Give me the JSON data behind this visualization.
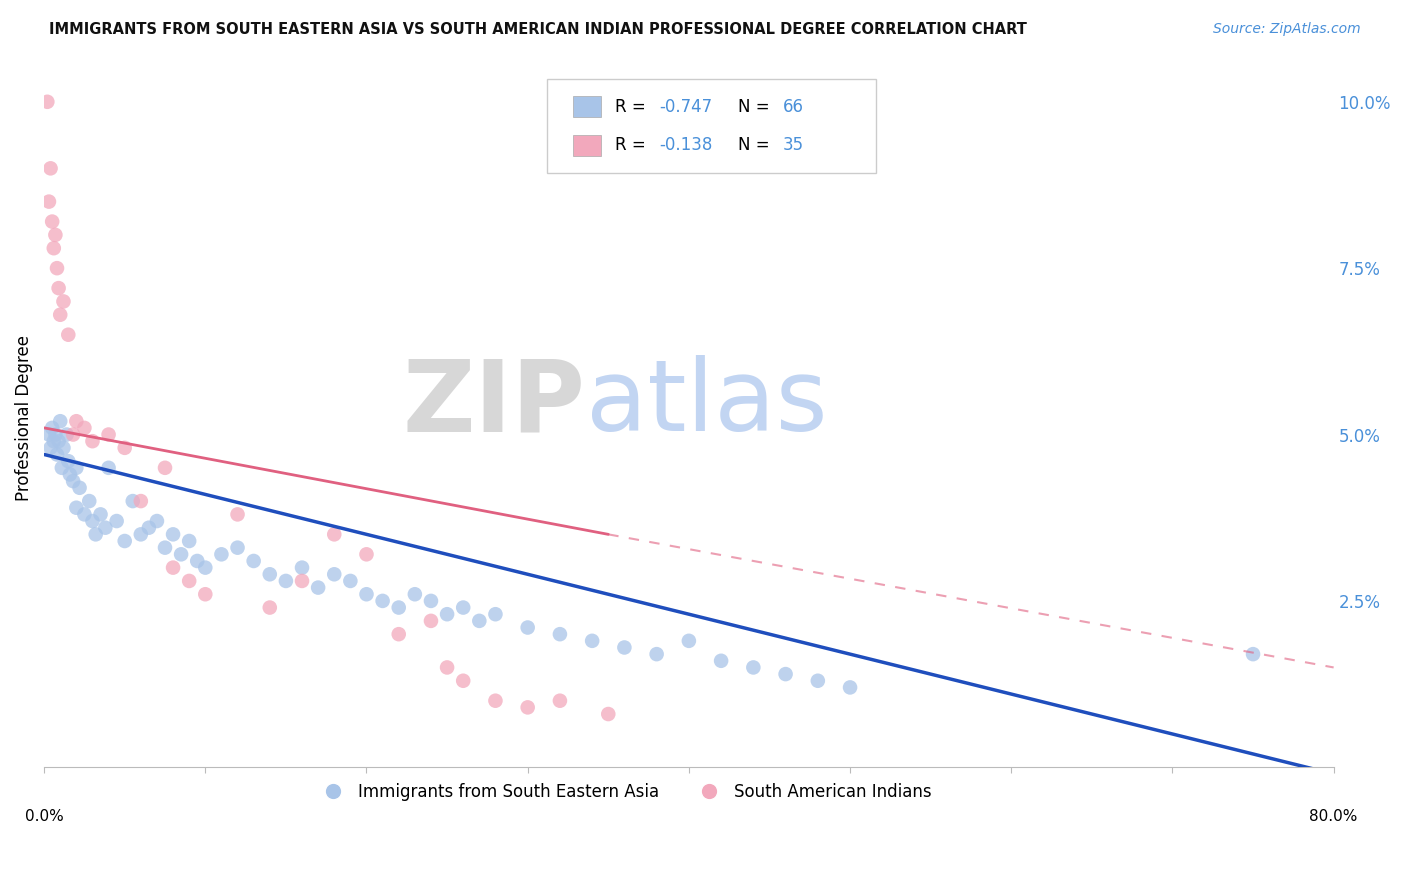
{
  "title": "IMMIGRANTS FROM SOUTH EASTERN ASIA VS SOUTH AMERICAN INDIAN PROFESSIONAL DEGREE CORRELATION CHART",
  "source": "Source: ZipAtlas.com",
  "ylabel": "Professional Degree",
  "legend_r1_val": "-0.747",
  "legend_n1_val": "66",
  "legend_r2_val": "-0.138",
  "legend_n2_val": "35",
  "legend_label1": "Immigrants from South Eastern Asia",
  "legend_label2": "South American Indians",
  "blue_color": "#a8c4e8",
  "pink_color": "#f2a8bc",
  "blue_line_color": "#1f4ebd",
  "pink_line_color": "#e06080",
  "watermark_zip": "ZIP",
  "watermark_atlas": "atlas",
  "watermark_zip_color": "#d0d0d0",
  "watermark_atlas_color": "#b8cef0",
  "xlim": [
    0,
    80
  ],
  "ylim": [
    0,
    10.5
  ],
  "ytick_vals": [
    0.0,
    2.5,
    5.0,
    7.5,
    10.0
  ],
  "ytick_labels": [
    "",
    "2.5%",
    "5.0%",
    "7.5%",
    "10.0%"
  ],
  "xtick_left_label": "0.0%",
  "xtick_right_label": "80.0%",
  "background_color": "#ffffff",
  "grid_color": "#d0d0d0",
  "title_color": "#111111",
  "source_color": "#4a90d9",
  "axis_label_color": "#4a90d9",
  "legend_val_color": "#4a90d9",
  "blue_x": [
    0.3,
    0.4,
    0.5,
    0.6,
    0.7,
    0.8,
    0.9,
    1.0,
    1.1,
    1.2,
    1.4,
    1.5,
    1.6,
    1.8,
    2.0,
    2.0,
    2.2,
    2.5,
    2.8,
    3.0,
    3.2,
    3.5,
    3.8,
    4.0,
    4.5,
    5.0,
    5.5,
    6.0,
    6.5,
    7.0,
    7.5,
    8.0,
    8.5,
    9.0,
    9.5,
    10.0,
    11.0,
    12.0,
    13.0,
    14.0,
    15.0,
    16.0,
    17.0,
    18.0,
    19.0,
    20.0,
    21.0,
    22.0,
    23.0,
    24.0,
    25.0,
    26.0,
    27.0,
    28.0,
    30.0,
    32.0,
    34.0,
    36.0,
    38.0,
    40.0,
    42.0,
    44.0,
    46.0,
    48.0,
    50.0,
    75.0
  ],
  "blue_y": [
    5.0,
    4.8,
    5.1,
    4.9,
    5.0,
    4.7,
    4.9,
    5.2,
    4.5,
    4.8,
    5.0,
    4.6,
    4.4,
    4.3,
    4.5,
    3.9,
    4.2,
    3.8,
    4.0,
    3.7,
    3.5,
    3.8,
    3.6,
    4.5,
    3.7,
    3.4,
    4.0,
    3.5,
    3.6,
    3.7,
    3.3,
    3.5,
    3.2,
    3.4,
    3.1,
    3.0,
    3.2,
    3.3,
    3.1,
    2.9,
    2.8,
    3.0,
    2.7,
    2.9,
    2.8,
    2.6,
    2.5,
    2.4,
    2.6,
    2.5,
    2.3,
    2.4,
    2.2,
    2.3,
    2.1,
    2.0,
    1.9,
    1.8,
    1.7,
    1.9,
    1.6,
    1.5,
    1.4,
    1.3,
    1.2,
    1.7
  ],
  "pink_x": [
    0.2,
    0.3,
    0.4,
    0.5,
    0.6,
    0.7,
    0.8,
    0.9,
    1.0,
    1.2,
    1.5,
    1.8,
    2.0,
    2.5,
    3.0,
    4.0,
    5.0,
    6.0,
    7.5,
    8.0,
    9.0,
    10.0,
    12.0,
    14.0,
    16.0,
    18.0,
    20.0,
    22.0,
    24.0,
    25.0,
    26.0,
    28.0,
    30.0,
    32.0,
    35.0
  ],
  "pink_y": [
    10.0,
    8.5,
    9.0,
    8.2,
    7.8,
    8.0,
    7.5,
    7.2,
    6.8,
    7.0,
    6.5,
    5.0,
    5.2,
    5.1,
    4.9,
    5.0,
    4.8,
    4.0,
    4.5,
    3.0,
    2.8,
    2.6,
    3.8,
    2.4,
    2.8,
    3.5,
    3.2,
    2.0,
    2.2,
    1.5,
    1.3,
    1.0,
    0.9,
    1.0,
    0.8
  ]
}
